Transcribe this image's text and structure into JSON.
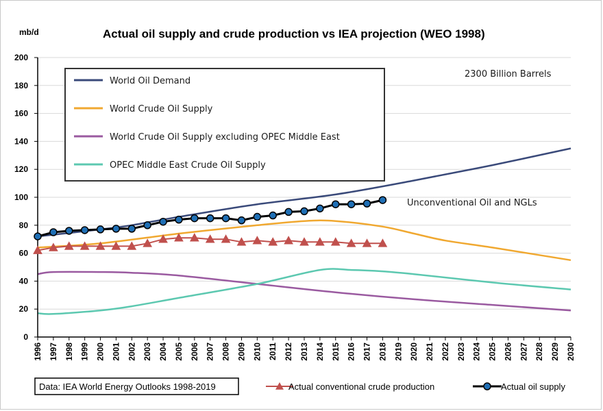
{
  "chart_data": {
    "type": "line",
    "title": "Actual oil supply and crude production  vs IEA projection (WEO 1998)",
    "ylabel": "mb/d",
    "xlim": [
      1996,
      2030
    ],
    "ylim": [
      0,
      200
    ],
    "y_ticks": [
      0,
      20,
      40,
      60,
      80,
      100,
      120,
      140,
      160,
      180,
      200
    ],
    "x_ticks": [
      1996,
      1997,
      1998,
      1999,
      2000,
      2001,
      2002,
      2003,
      2004,
      2005,
      2006,
      2007,
      2008,
      2009,
      2010,
      2011,
      2012,
      2013,
      2014,
      2015,
      2016,
      2017,
      2018,
      2019,
      2020,
      2021,
      2022,
      2023,
      2024,
      2025,
      2026,
      2027,
      2028,
      2029,
      2030
    ],
    "grid": "horizontal",
    "annotations": [
      "2300 Billion Barrels",
      "Unconventional Oil and NGLs"
    ],
    "source_note": "Data: IEA World Energy Outlooks 1998-2019",
    "projection_series": [
      {
        "name": "World Oil Demand",
        "color": "#3a4a7a",
        "points": [
          [
            1996,
            72
          ],
          [
            2000,
            77
          ],
          [
            2002,
            80
          ],
          [
            2005,
            86
          ],
          [
            2010,
            95
          ],
          [
            2015,
            102
          ],
          [
            2020,
            112
          ],
          [
            2025,
            123
          ],
          [
            2030,
            135
          ]
        ]
      },
      {
        "name": "World Crude Oil Supply",
        "color": "#f0a830",
        "points": [
          [
            1996,
            64
          ],
          [
            2000,
            67
          ],
          [
            2005,
            74
          ],
          [
            2010,
            80
          ],
          [
            2013,
            83
          ],
          [
            2015,
            83
          ],
          [
            2018,
            79
          ],
          [
            2020,
            74
          ],
          [
            2022,
            69
          ],
          [
            2025,
            64
          ],
          [
            2030,
            55
          ]
        ]
      },
      {
        "name": "World Crude Oil Supply excluding OPEC Middle East",
        "color": "#9a5aa0",
        "points": [
          [
            1996,
            45
          ],
          [
            1997,
            46.5
          ],
          [
            2000,
            46.5
          ],
          [
            2002,
            46
          ],
          [
            2005,
            44
          ],
          [
            2010,
            38
          ],
          [
            2015,
            32
          ],
          [
            2020,
            27
          ],
          [
            2025,
            23
          ],
          [
            2030,
            19
          ]
        ]
      },
      {
        "name": "OPEC Middle East Crude Oil Supply",
        "color": "#5cc8b0",
        "points": [
          [
            1996,
            17
          ],
          [
            1997,
            16.5
          ],
          [
            2000,
            19
          ],
          [
            2002,
            22
          ],
          [
            2005,
            28
          ],
          [
            2010,
            38
          ],
          [
            2014,
            48
          ],
          [
            2016,
            48
          ],
          [
            2018,
            47
          ],
          [
            2020,
            45
          ],
          [
            2025,
            39
          ],
          [
            2030,
            34
          ]
        ]
      }
    ],
    "actual_series": [
      {
        "name": "Actual conventional crude production",
        "color": "#c0504d",
        "marker": "triangle",
        "x": [
          1996,
          1997,
          1998,
          1999,
          2000,
          2001,
          2002,
          2003,
          2004,
          2005,
          2006,
          2007,
          2008,
          2009,
          2010,
          2011,
          2012,
          2013,
          2014,
          2015,
          2016,
          2017,
          2018
        ],
        "values": [
          62,
          64,
          65,
          65,
          65,
          65,
          65,
          67,
          70,
          71,
          71,
          70,
          70,
          68,
          69,
          68,
          69,
          68,
          68,
          68,
          67,
          67,
          67
        ]
      },
      {
        "name": "Actual oil supply",
        "color": "#000000",
        "marker_color": "#1f6fb5",
        "marker": "circle",
        "x": [
          1996,
          1997,
          1998,
          1999,
          2000,
          2001,
          2002,
          2003,
          2004,
          2005,
          2006,
          2007,
          2008,
          2009,
          2010,
          2011,
          2012,
          2013,
          2014,
          2015,
          2016,
          2017,
          2018
        ],
        "values": [
          72,
          75,
          76,
          76.5,
          77,
          77.5,
          77.5,
          80,
          82.5,
          84,
          85,
          85,
          85,
          83.5,
          86,
          87,
          89.5,
          90,
          92,
          95,
          95,
          95.5,
          98
        ]
      }
    ]
  }
}
